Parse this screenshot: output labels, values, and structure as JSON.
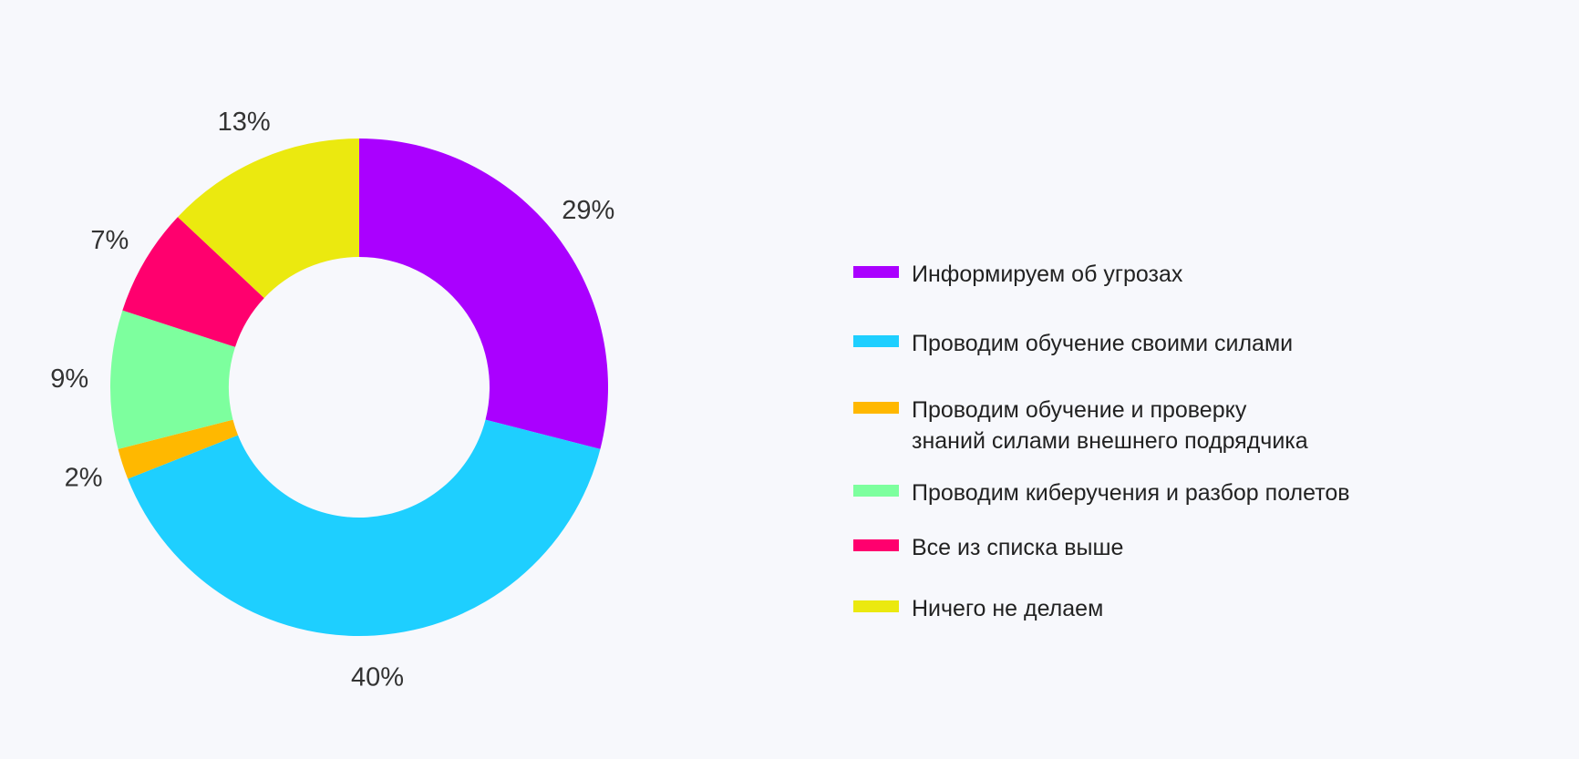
{
  "chart_data": {
    "type": "pie",
    "donut": true,
    "title": "",
    "categories": [
      "Информируем об угрозах",
      "Проводим обучение своими силами",
      "Проводим обучение и проверку знаний силами внешнего подрядчика",
      "Проводим киберучения и разбор полетов",
      "Все из списка выше",
      "Ничего не делаем"
    ],
    "values": [
      29,
      40,
      2,
      9,
      7,
      13
    ],
    "labels": [
      "29%",
      "40%",
      "2%",
      "9%",
      "7%",
      "13%"
    ],
    "colors": [
      "#aa00ff",
      "#1ecfff",
      "#ffb800",
      "#7dff9e",
      "#ff006e",
      "#ebe90f"
    ],
    "start": "top",
    "direction": "clockwise",
    "legend_placement": "right"
  }
}
